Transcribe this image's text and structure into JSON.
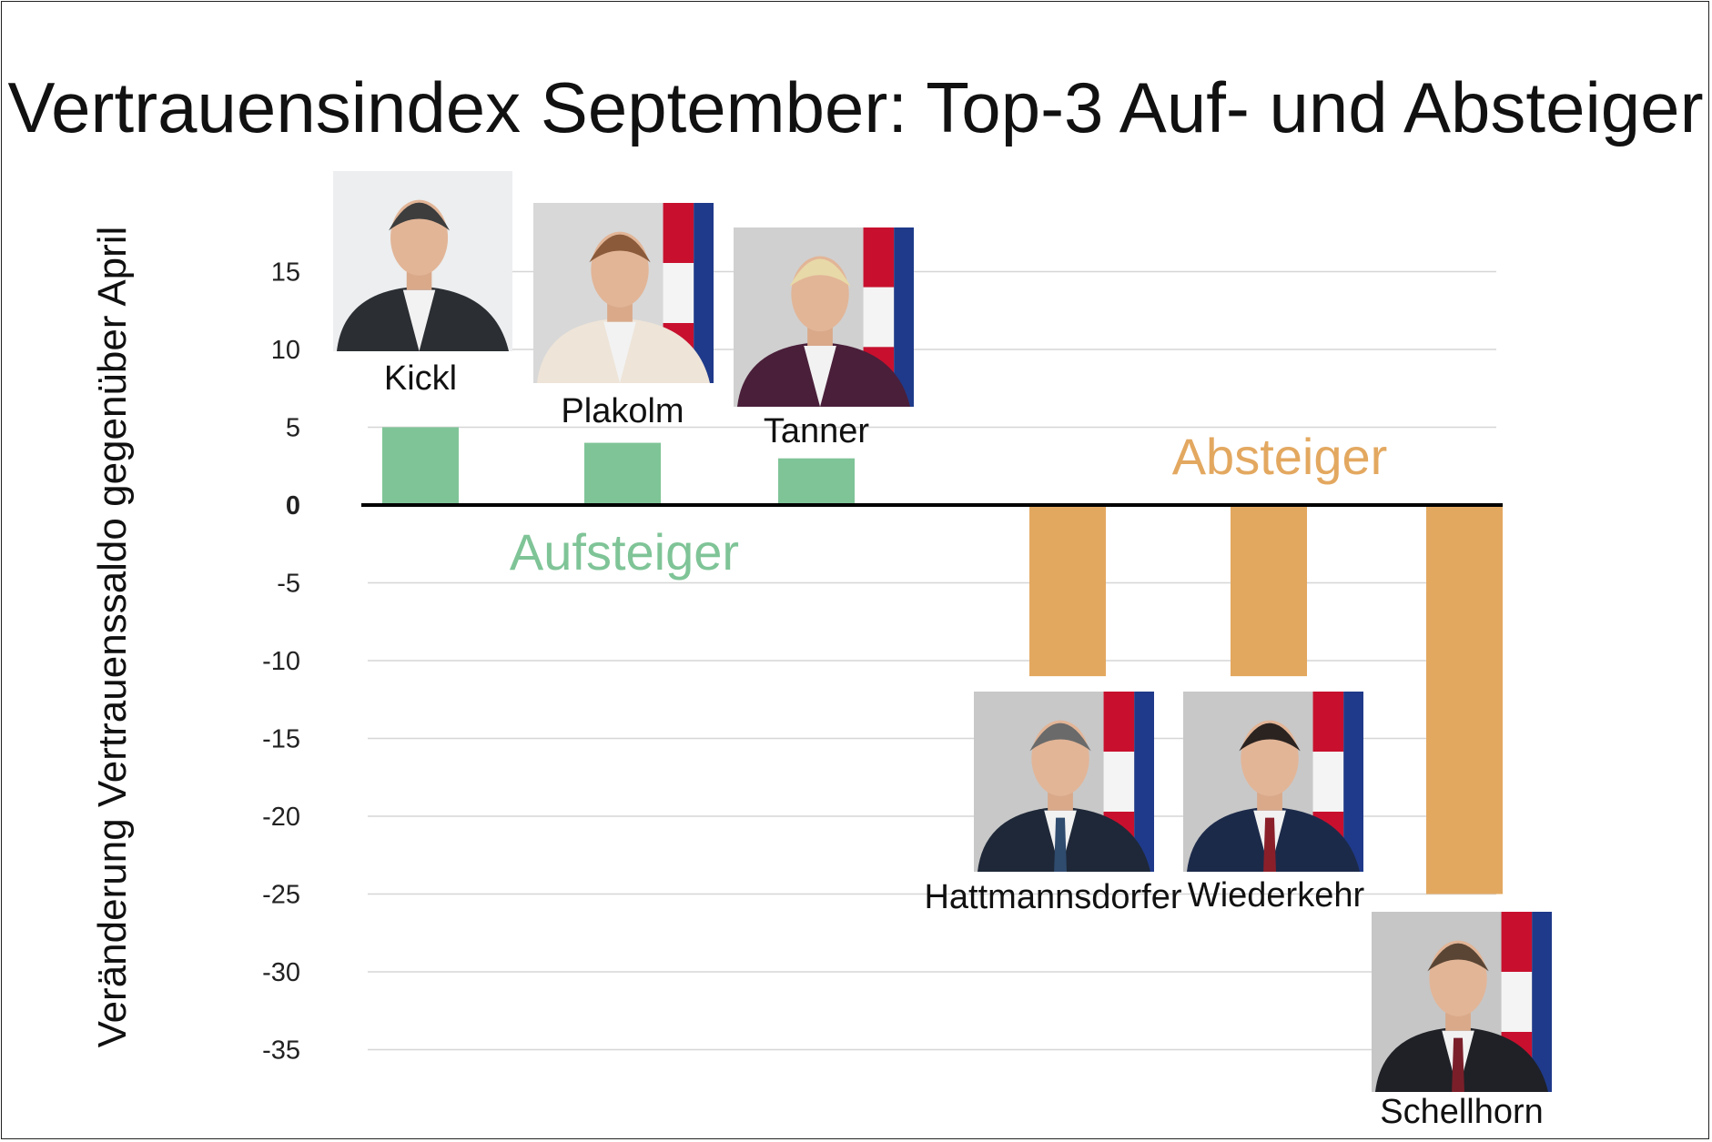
{
  "chart_data": {
    "type": "bar",
    "title": "Vertrauensindex September: Top-3 Auf- und Absteiger",
    "xlabel": "",
    "ylabel": "Veränderung Vertrauenssaldo gegenüber April",
    "ylim": [
      -35,
      15
    ],
    "yticks": [
      15,
      10,
      5,
      0,
      -5,
      -10,
      -15,
      -20,
      -25,
      -30,
      -35
    ],
    "grid": true,
    "categories": [
      "Kickl",
      "Plakolm",
      "Tanner",
      "Hattmannsdorfer",
      "Wiederkehr",
      "Schellhorn"
    ],
    "values": [
      5,
      4,
      3,
      -11,
      -11,
      -25
    ],
    "groups": [
      {
        "label": "Aufsteiger",
        "color": "#7FC497",
        "members": [
          "Kickl",
          "Plakolm",
          "Tanner"
        ]
      },
      {
        "label": "Absteiger",
        "color": "#E3A860",
        "members": [
          "Hattmannsdorfer",
          "Wiederkehr",
          "Schellhorn"
        ]
      }
    ],
    "colors": {
      "up": "#7FC497",
      "down": "#E3A860",
      "grid": "#d6d6d6",
      "axis": "#000000"
    }
  }
}
